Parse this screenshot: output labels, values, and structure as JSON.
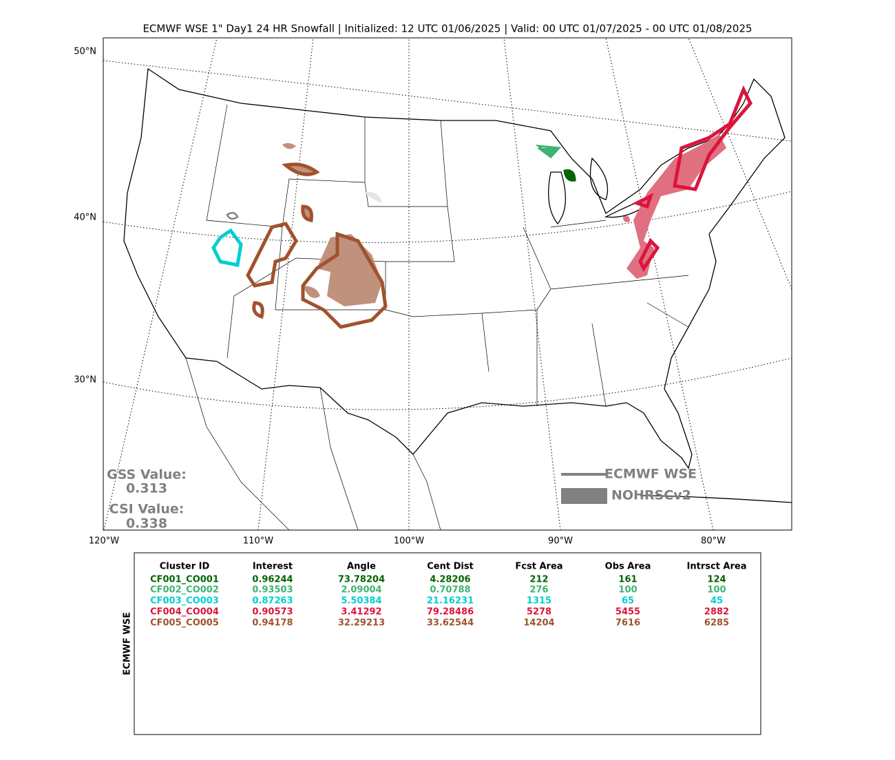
{
  "title": "ECMWF WSE 1\" Day1 24 HR Snowfall | Initialized: 12 UTC 01/06/2025 | Valid: 00 UTC 01/07/2025 - 00 UTC 01/08/2025",
  "map": {
    "lat_labels": [
      "50°N",
      "40°N",
      "30°N"
    ],
    "lon_labels": [
      "120°W",
      "110°W",
      "100°W",
      "90°W",
      "80°W"
    ]
  },
  "scores": {
    "gss_label": "GSS Value:",
    "gss": "0.313",
    "csi_label": "CSI Value:",
    "csi": "0.338"
  },
  "legend": {
    "forecast": "ECMWF WSE",
    "observed": "NOHRSCv2",
    "color": "#808080"
  },
  "table": {
    "side_label": "ECMWF WSE",
    "columns": [
      "Cluster ID",
      "Interest",
      "Angle",
      "Cent Dist",
      "Fcst Area",
      "Obs Area",
      "Intrsct Area"
    ],
    "rows": [
      {
        "color": "#006400",
        "cells": [
          "CF001_CO001",
          "0.96244",
          "73.78204",
          "4.28206",
          "212",
          "161",
          "124"
        ]
      },
      {
        "color": "#3cb371",
        "cells": [
          "CF002_CO002",
          "0.93503",
          "2.09004",
          "0.70788",
          "276",
          "100",
          "100"
        ]
      },
      {
        "color": "#00ced1",
        "cells": [
          "CF003_CO003",
          "0.87263",
          "5.50384",
          "21.16231",
          "1315",
          "65",
          "45"
        ]
      },
      {
        "color": "#dc143c",
        "cells": [
          "CF004_CO004",
          "0.90573",
          "3.41292",
          "79.28486",
          "5278",
          "5455",
          "2882"
        ]
      },
      {
        "color": "#a0522d",
        "cells": [
          "CF005_CO005",
          "0.94178",
          "32.29213",
          "33.62544",
          "14204",
          "7616",
          "6285"
        ]
      }
    ]
  }
}
